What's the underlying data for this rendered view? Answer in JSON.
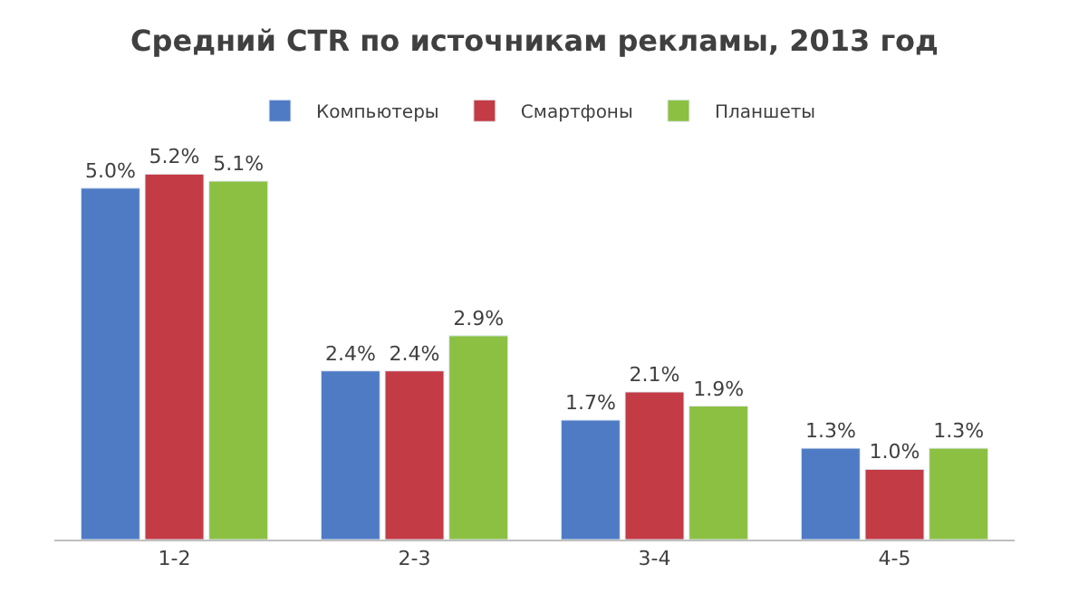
{
  "chart_data": {
    "type": "bar",
    "title": "Средний CTR по источникам рекламы, 2013 год",
    "categories": [
      "1-2",
      "2-3",
      "3-4",
      "4-5"
    ],
    "series": [
      {
        "name": "Компьютеры",
        "color": "#4f7bc4",
        "values": [
          5.0,
          2.4,
          1.7,
          1.3
        ],
        "value_labels": [
          "5.0%",
          "2.4%",
          "1.7%",
          "1.3%"
        ]
      },
      {
        "name": "Смартфоны",
        "color": "#c33b44",
        "values": [
          5.2,
          2.4,
          2.1,
          1.0
        ],
        "value_labels": [
          "5.2%",
          "2.4%",
          "2.1%",
          "1.0%"
        ]
      },
      {
        "name": "Планшеты",
        "color": "#8cc043",
        "values": [
          5.1,
          2.9,
          1.9,
          1.3
        ],
        "value_labels": [
          "5.1%",
          "2.9%",
          "1.9%",
          "1.3%"
        ]
      }
    ],
    "legend": "top"
  }
}
